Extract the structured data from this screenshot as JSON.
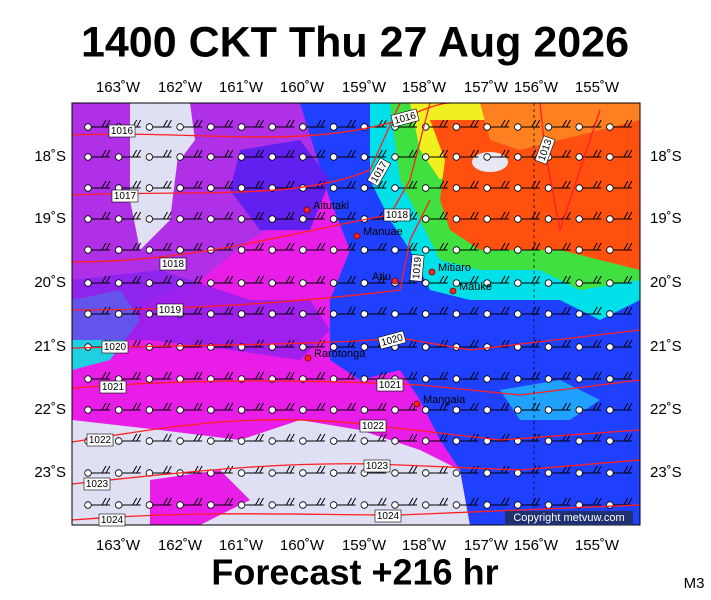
{
  "header": {
    "title": "1400 CKT Thu 27 Aug 2026"
  },
  "longitudes": [
    "163˚W",
    "162˚W",
    "161˚W",
    "160˚W",
    "159˚W",
    "158˚W",
    "157˚W",
    "156˚W",
    "155˚W"
  ],
  "latitudes": [
    "18˚S",
    "19˚S",
    "20˚S",
    "21˚S",
    "22˚S",
    "23˚S"
  ],
  "isobars": [
    "1016",
    "1016",
    "1013",
    "1017",
    "1017",
    "1018",
    "1018",
    "1019",
    "1019",
    "1020",
    "1020",
    "1021",
    "1021",
    "1022",
    "1022",
    "1023",
    "1023",
    "1024",
    "1024"
  ],
  "places": [
    "Aitutaki",
    "Manuae",
    "Atiu",
    "Mitiaro",
    "Mauke",
    "Rarotonga",
    "Mangaia"
  ],
  "copyright": "Copyright metvuw.com",
  "footer": {
    "forecast": "Forecast +216 hr",
    "model": "M3"
  }
}
